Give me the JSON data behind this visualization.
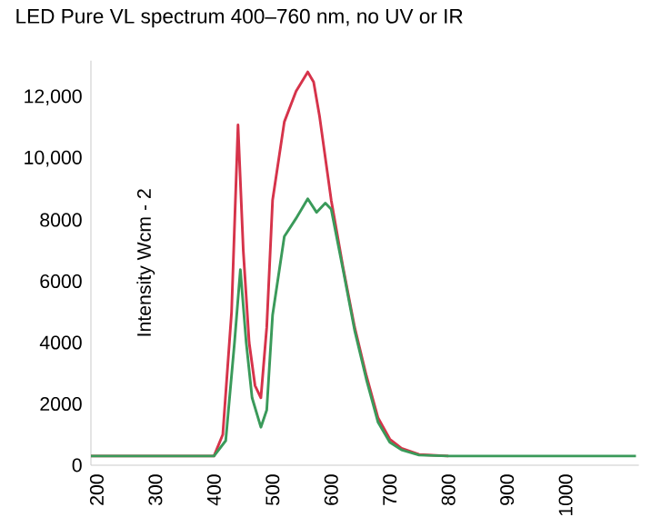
{
  "chart_data": {
    "type": "line",
    "title": "LED Pure VL spectrum 400–760 nm, no UV or IR",
    "ylabel": "Intensity Wcm - 2",
    "xlim": [
      190,
      1125
    ],
    "ylim": [
      0,
      13200
    ],
    "xticks": [
      200,
      300,
      400,
      500,
      600,
      700,
      800,
      900,
      1000
    ],
    "yticks": [
      0,
      2000,
      4000,
      6000,
      8000,
      {
        "value": 10000,
        "label": "10,000"
      },
      {
        "value": 12000,
        "label": "12,000"
      }
    ],
    "marker": "none",
    "line_style": "solid",
    "series": [
      {
        "color": "#d6334a",
        "x": [
          190,
          300,
          400,
          415,
          430,
          441,
          450,
          460,
          470,
          480,
          490,
          500,
          520,
          540,
          560,
          570,
          580,
          600,
          620,
          640,
          660,
          680,
          700,
          720,
          750,
          800
        ],
        "values": [
          300,
          300,
          300,
          1000,
          5000,
          11100,
          7000,
          4000,
          2600,
          2200,
          4500,
          8650,
          11200,
          12200,
          12830,
          12500,
          11400,
          8650,
          6480,
          4500,
          2920,
          1540,
          850,
          550,
          350,
          300
        ]
      },
      {
        "color": "#3a9a5a",
        "x": [
          190,
          300,
          400,
          420,
          435,
          445,
          455,
          465,
          480,
          490,
          500,
          520,
          540,
          560,
          575,
          590,
          600,
          620,
          640,
          660,
          680,
          700,
          720,
          750,
          800,
          1000,
          1120
        ],
        "values": [
          300,
          300,
          300,
          800,
          4000,
          6380,
          4000,
          2200,
          1240,
          1800,
          4900,
          7460,
          8050,
          8690,
          8250,
          8550,
          8350,
          6400,
          4400,
          2800,
          1400,
          750,
          500,
          330,
          300,
          300,
          300
        ]
      }
    ]
  }
}
